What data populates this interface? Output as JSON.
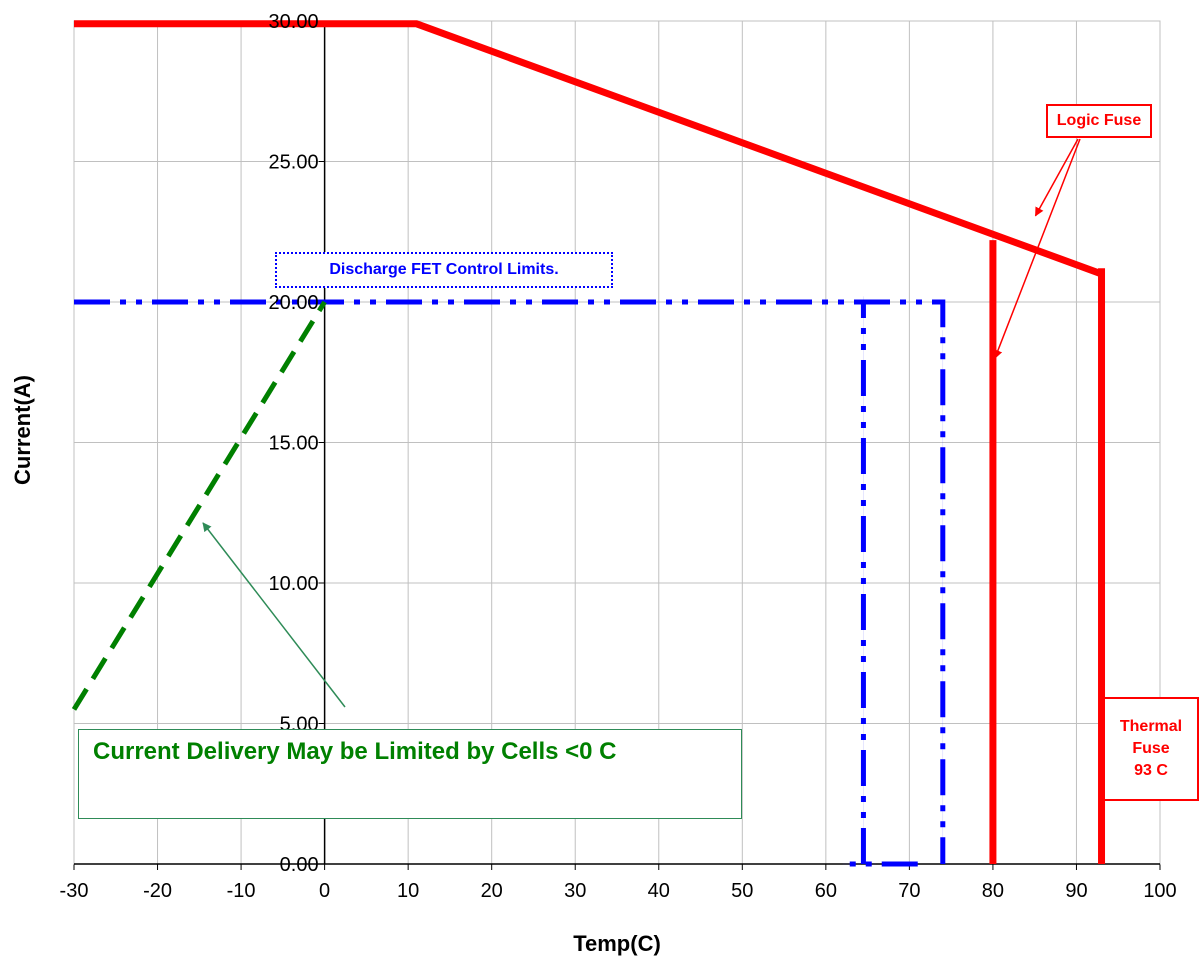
{
  "chart_data": {
    "type": "line",
    "title": "",
    "xlabel": "Temp(C)",
    "ylabel": "Current(A)",
    "xlim": [
      -30,
      100
    ],
    "ylim": [
      0,
      30
    ],
    "x_ticks": [
      "-30",
      "-20",
      "-10",
      "0",
      "10",
      "20",
      "30",
      "40",
      "50",
      "60",
      "70",
      "80",
      "90",
      "100"
    ],
    "y_ticks": [
      "0.00",
      "5.00",
      "10.00",
      "15.00",
      "20.00",
      "25.00",
      "30.00"
    ],
    "grid": true,
    "series": [
      {
        "style": "solid",
        "color": "#ff0000",
        "x": [
          -30,
          11,
          93
        ],
        "y": [
          29.9,
          29.9,
          21.0
        ]
      },
      {
        "style": "solid",
        "color": "#ff0000",
        "x": [
          80,
          80
        ],
        "y": [
          22.2,
          0
        ]
      },
      {
        "style": "solid",
        "color": "#ff0000",
        "x": [
          93,
          93
        ],
        "y": [
          21.2,
          0
        ]
      },
      {
        "style": "dash-dot-dot",
        "color": "#0000ff",
        "x": [
          -30,
          74,
          74
        ],
        "y": [
          20,
          20,
          0
        ]
      },
      {
        "style": "dash-dot-dot",
        "color": "#0000ff",
        "x": [
          64.5,
          64.5
        ],
        "y": [
          0,
          20
        ]
      },
      {
        "style": "dash-dot-dot",
        "color": "#0000ff",
        "x": [
          71,
          62
        ],
        "y": [
          0,
          0
        ]
      },
      {
        "style": "dashed",
        "color": "#008000",
        "x": [
          -30,
          0
        ],
        "y": [
          5.5,
          20
        ]
      }
    ],
    "annotations": [
      {
        "text": "Logic Fuse",
        "color": "#ff0000"
      },
      {
        "text": "Discharge FET Control Limits.",
        "color": "#0000ff"
      },
      {
        "text": "Current Delivery May be Limited by Cells <0  C",
        "color": "#008000"
      },
      {
        "text_lines": [
          "Thermal",
          "Fuse",
          "93  C"
        ],
        "color": "#ff0000"
      }
    ]
  },
  "labels": {
    "logic_fuse": "Logic Fuse",
    "fet": "Discharge FET Control Limits.",
    "cells": "Current Delivery May be Limited by Cells <0  C",
    "thermal_1": "Thermal",
    "thermal_2": "Fuse",
    "thermal_3": "93  C"
  },
  "colors": {
    "red": "#ff0000",
    "blue": "#0000ff",
    "green": "#008000",
    "teal": "#2e8b57",
    "grid": "#c0c0c0"
  }
}
